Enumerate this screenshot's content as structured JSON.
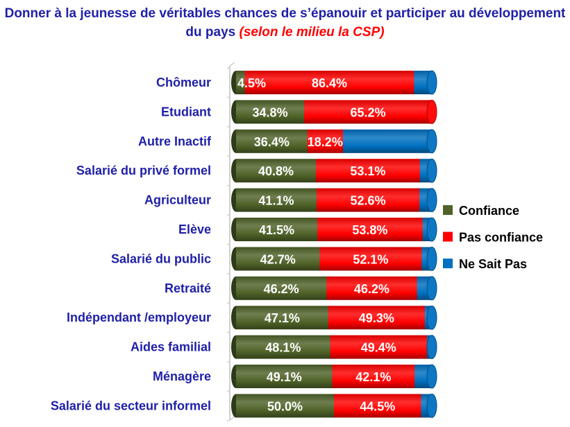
{
  "title": {
    "main": "Donner à la jeunesse de véritables chances de s’épanouir et participer au développement du pays",
    "sub": "(selon le milieu la CSP)"
  },
  "colors": {
    "confiance": "#4f6228",
    "pas_confiance": "#ff0000",
    "ne_sait_pas": "#0070c0",
    "title": "#1f1fa8"
  },
  "chart_data": {
    "type": "bar",
    "orientation": "horizontal",
    "stacked": true,
    "categories": [
      "Chômeur",
      "Etudiant",
      "Autre Inactif",
      "Salarié du privé formel",
      "Agriculteur",
      "Elève",
      "Salarié du public",
      "Retraité",
      "Indépendant /employeur",
      "Aides familial",
      "Ménagère",
      "Salarié du secteur informel"
    ],
    "series": [
      {
        "name": "Confiance",
        "values": [
          4.5,
          34.8,
          36.4,
          40.8,
          41.1,
          41.5,
          42.7,
          46.2,
          47.1,
          48.1,
          49.1,
          50.0
        ]
      },
      {
        "name": "Pas confiance",
        "values": [
          86.4,
          65.2,
          18.2,
          53.1,
          52.6,
          53.8,
          52.1,
          46.2,
          49.3,
          49.4,
          42.1,
          44.5
        ]
      },
      {
        "name": "Ne Sait Pas",
        "values": [
          9.1,
          0.0,
          45.4,
          6.1,
          6.3,
          4.7,
          5.2,
          7.6,
          3.6,
          2.5,
          8.8,
          5.5
        ]
      }
    ],
    "labels": [
      [
        "4.5%",
        "86.4%",
        ""
      ],
      [
        "34.8%",
        "65.2%",
        ""
      ],
      [
        "36.4%",
        "18.2%",
        ""
      ],
      [
        "40.8%",
        "53.1%",
        ""
      ],
      [
        "41.1%",
        "52.6%",
        ""
      ],
      [
        "41.5%",
        "53.8%",
        ""
      ],
      [
        "42.7%",
        "52.1%",
        ""
      ],
      [
        "46.2%",
        "46.2%",
        ""
      ],
      [
        "47.1%",
        "49.3%",
        ""
      ],
      [
        "48.1%",
        "49.4%",
        ""
      ],
      [
        "49.1%",
        "42.1%",
        ""
      ],
      [
        "50.0%",
        "44.5%",
        ""
      ]
    ],
    "xlim": [
      0,
      100
    ],
    "legend_position": "right"
  }
}
